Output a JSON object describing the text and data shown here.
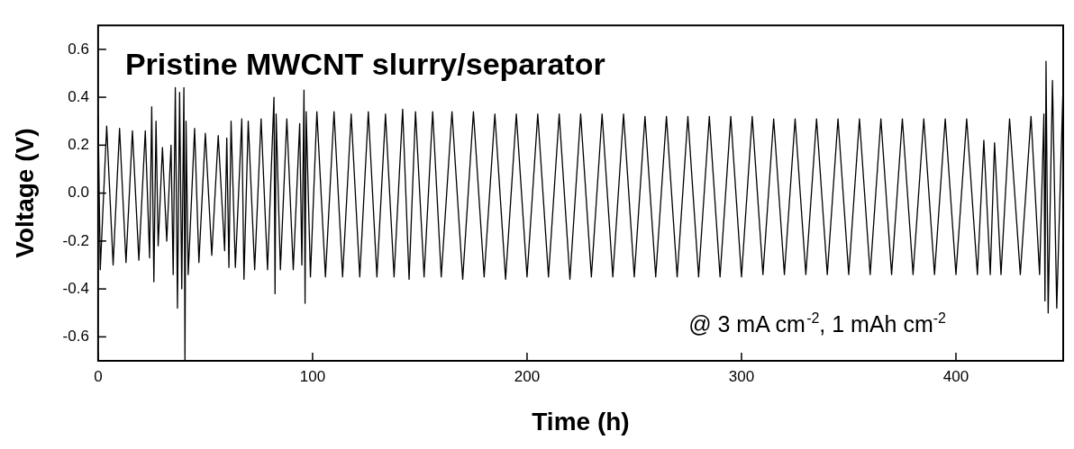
{
  "chart_data": {
    "type": "line",
    "title": "Pristine MWCNT slurry/separator",
    "xlabel": "Time (h)",
    "ylabel": "Voltage (V)",
    "annotations": [
      "@ 3 mA cm$^{-2}$, 1 mAh cm$^{-2}$"
    ],
    "xlim": [
      0,
      450
    ],
    "xticks": [
      0,
      100,
      200,
      300,
      400
    ],
    "ylim": [
      -0.7,
      0.7
    ],
    "yticks": [
      {
        "value": 0.6,
        "label": "0.6"
      },
      {
        "value": 0.4,
        "label": "0.4"
      },
      {
        "value": 0.2,
        "label": "0.2"
      },
      {
        "value": 0,
        "label": "0.0"
      },
      {
        "value": -0.2,
        "label": "-0.2"
      },
      {
        "value": -0.4,
        "label": "-0.4"
      },
      {
        "value": -0.6,
        "label": "-0.6"
      }
    ],
    "grid": false,
    "legend": false,
    "marker": "none",
    "line_style": "solid",
    "series": [
      {
        "color": "#000000",
        "x": [
          0,
          1,
          4,
          7,
          10,
          13,
          16,
          19,
          22,
          24,
          25,
          26,
          27,
          28,
          30,
          32,
          34,
          35,
          36,
          37,
          38,
          39,
          40,
          40.5,
          41,
          42,
          45,
          47,
          50,
          53,
          56,
          59,
          60,
          61,
          62,
          64,
          67,
          68,
          70,
          73,
          76,
          79,
          82,
          82.5,
          83,
          85,
          88,
          91,
          94,
          95,
          96,
          96.5,
          97,
          99,
          102,
          106,
          110,
          114,
          118,
          122,
          126,
          130,
          134,
          138,
          142,
          145,
          148,
          152,
          156,
          160,
          165,
          170,
          175,
          180,
          185,
          190,
          195,
          200,
          205,
          210,
          215,
          220,
          225,
          230,
          235,
          240,
          245,
          250,
          255,
          260,
          265,
          270,
          275,
          280,
          285,
          290,
          295,
          300,
          305,
          310,
          315,
          320,
          325,
          330,
          335,
          340,
          345,
          350,
          355,
          360,
          365,
          370,
          375,
          380,
          385,
          390,
          395,
          400,
          405,
          410,
          413,
          416,
          418,
          421,
          425,
          430,
          435,
          439,
          441,
          441.5,
          442,
          443,
          445,
          447,
          450
        ],
        "values": [
          0.33,
          -0.32,
          0.28,
          -0.3,
          0.27,
          -0.29,
          0.26,
          -0.28,
          0.26,
          -0.27,
          0.36,
          -0.37,
          0.3,
          -0.22,
          0.19,
          -0.2,
          0.2,
          -0.34,
          0.44,
          -0.48,
          0.42,
          -0.4,
          0.44,
          -0.7,
          0.3,
          -0.34,
          0.27,
          -0.29,
          0.25,
          -0.26,
          0.24,
          -0.24,
          0.23,
          -0.31,
          0.3,
          -0.31,
          0.31,
          -0.36,
          0.3,
          -0.32,
          0.31,
          -0.32,
          0.4,
          -0.42,
          0.33,
          -0.32,
          0.31,
          -0.32,
          0.29,
          -0.3,
          0.43,
          -0.46,
          0.34,
          -0.35,
          0.34,
          -0.35,
          0.34,
          -0.35,
          0.33,
          -0.35,
          0.34,
          -0.35,
          0.33,
          -0.35,
          0.35,
          -0.36,
          0.34,
          -0.35,
          0.34,
          -0.35,
          0.34,
          -0.36,
          0.34,
          -0.35,
          0.33,
          -0.36,
          0.33,
          -0.35,
          0.33,
          -0.35,
          0.33,
          -0.36,
          0.33,
          -0.35,
          0.33,
          -0.35,
          0.33,
          -0.35,
          0.32,
          -0.35,
          0.32,
          -0.35,
          0.32,
          -0.35,
          0.32,
          -0.35,
          0.32,
          -0.35,
          0.32,
          -0.34,
          0.31,
          -0.34,
          0.31,
          -0.34,
          0.31,
          -0.34,
          0.31,
          -0.34,
          0.31,
          -0.34,
          0.31,
          -0.34,
          0.31,
          -0.34,
          0.31,
          -0.34,
          0.31,
          -0.34,
          0.31,
          -0.34,
          0.22,
          -0.34,
          0.21,
          -0.34,
          0.31,
          -0.34,
          0.32,
          -0.34,
          0.33,
          -0.45,
          0.55,
          -0.5,
          0.47,
          -0.48,
          0.46
        ]
      }
    ]
  }
}
